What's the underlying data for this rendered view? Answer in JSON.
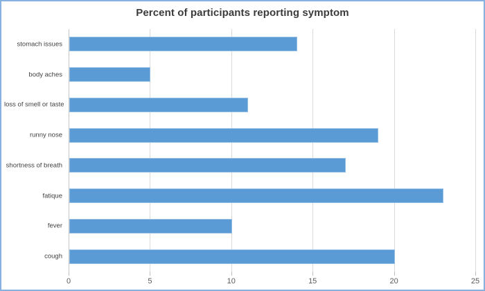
{
  "chart_data": {
    "type": "bar",
    "orientation": "horizontal",
    "title": "Percent of participants reporting symptom",
    "categories": [
      "stomach issues",
      "body aches",
      "loss of smell or taste",
      "runny nose",
      "shortness of breath",
      "fatique",
      "fever",
      "cough"
    ],
    "values": [
      14,
      5,
      11,
      19,
      17,
      23,
      10,
      20
    ],
    "xlabel": "",
    "ylabel": "",
    "xlim": [
      0,
      25
    ],
    "xticks": [
      0,
      5,
      10,
      15,
      20,
      25
    ],
    "grid": "vertical-only",
    "legend": "none",
    "colors": {
      "bar": "#5b9bd5",
      "frame_border": "#85b2e0",
      "gridline": "#d9d9d9",
      "axis_line": "#c6c6c6",
      "tick_mark": "#bfbfbf",
      "tick_label": "#595959",
      "title": "#3b3b3b",
      "category_label": "#404040",
      "background": "#ffffff"
    }
  }
}
